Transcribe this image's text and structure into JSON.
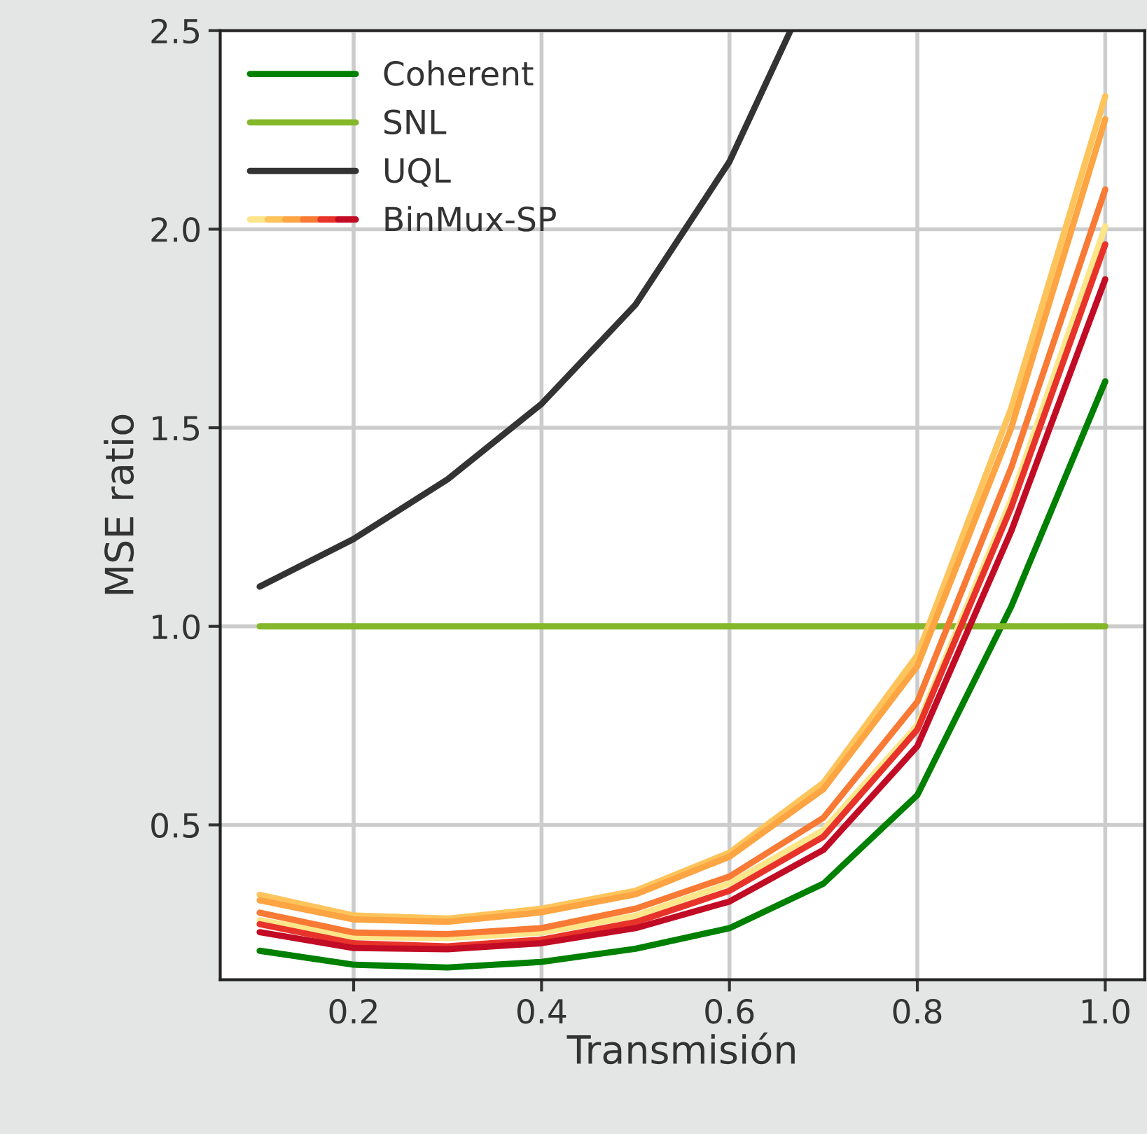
{
  "chart_data": {
    "type": "line",
    "xlabel": "Transmisión",
    "ylabel": "MSE ratio",
    "x": [
      0.1,
      0.2,
      0.3,
      0.4,
      0.5,
      0.6,
      0.7,
      0.8,
      0.9,
      1.0
    ],
    "series": [
      {
        "name": "Coherent",
        "color": "#008000",
        "values": [
          0.183,
          0.148,
          0.141,
          0.155,
          0.188,
          0.24,
          0.352,
          0.575,
          1.05,
          1.617
        ]
      },
      {
        "name": "SNL",
        "color": "#84b82a",
        "values": [
          1.0,
          1.0,
          1.0,
          1.0,
          1.0,
          1.0,
          1.0,
          1.0,
          1.0,
          1.0
        ]
      },
      {
        "name": "UQL",
        "color": "#333333",
        "x": [
          0.1,
          0.2,
          0.3,
          0.4,
          0.5,
          0.6,
          0.665
        ],
        "values": [
          1.1,
          1.22,
          1.37,
          1.56,
          1.81,
          2.17,
          2.5
        ]
      },
      {
        "color": "#fde58a",
        "values": [
          0.26,
          0.218,
          0.215,
          0.229,
          0.271,
          0.352,
          0.487,
          0.751,
          1.32,
          2.007
        ]
      },
      {
        "color": "#fec45c",
        "values": [
          0.324,
          0.272,
          0.264,
          0.289,
          0.334,
          0.43,
          0.606,
          0.927,
          1.55,
          2.335
        ]
      },
      {
        "color": "#fda443",
        "values": [
          0.31,
          0.262,
          0.256,
          0.28,
          0.325,
          0.42,
          0.59,
          0.9,
          1.5,
          2.277
        ]
      },
      {
        "color": "#f87a34",
        "values": [
          0.279,
          0.229,
          0.225,
          0.24,
          0.289,
          0.37,
          0.518,
          0.81,
          1.4,
          2.1
        ]
      },
      {
        "color": "#e8332a",
        "values": [
          0.25,
          0.202,
          0.194,
          0.211,
          0.255,
          0.334,
          0.47,
          0.74,
          1.3,
          1.962
        ]
      },
      {
        "name": "BinMux-SP",
        "color": "#c20b24",
        "values": [
          0.23,
          0.19,
          0.187,
          0.202,
          0.24,
          0.307,
          0.437,
          0.698,
          1.24,
          1.874
        ]
      }
    ],
    "xlim": [
      0.058,
      1.042
    ],
    "ylim": [
      0.11,
      2.5
    ],
    "xticks": [
      0.2,
      0.4,
      0.6,
      0.8,
      {
        "value": 1.0,
        "label": "1.0"
      }
    ],
    "yticks": [
      0.5,
      {
        "value": 1.0,
        "label": "1.0"
      },
      1.5,
      {
        "value": 2.0,
        "label": "2.0"
      },
      2.5
    ],
    "grid": true,
    "legend": "top left",
    "marker": "none",
    "line_style": "solid"
  }
}
